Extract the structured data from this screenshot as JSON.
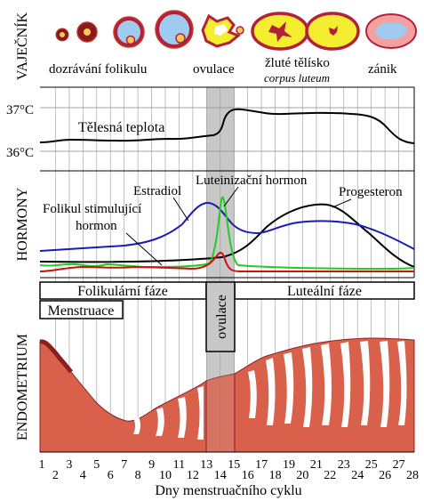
{
  "rows": {
    "ovary": "VAJEČNÍK",
    "hormones": "HORMONY",
    "endometrium": "ENDOMETRIUM"
  },
  "ovary_stages": {
    "maturation": "dozrávání folikulu",
    "ovulation": "ovulace",
    "corpus_luteum": "žluté tělísko",
    "corpus_luteum_latin": "corpus luteum",
    "decline": "zánik"
  },
  "temperature": {
    "label": "Tělesná teplota",
    "tick_high": "37°C",
    "tick_low": "36°C"
  },
  "hormone_labels": {
    "estradiol": "Estradiol",
    "lh": "Luteinizační hormon",
    "fsh_line1": "Folikul stimulující",
    "fsh_line2": "hormon",
    "progesterone": "Progesteron"
  },
  "phases": {
    "follicular": "Folikulární fáze",
    "ovulation": "ovulace",
    "luteal": "Luteální fáze",
    "menstruation": "Menstruace"
  },
  "colors": {
    "fsh": "#22cc22",
    "lh_peak": "#33ee33",
    "estradiol": "#1a1ab8",
    "progesterone": "#000000",
    "lh": "#cc1111",
    "endometrium": "#d9604a",
    "ovulation_band": "#c8c8c8"
  },
  "x_axis": {
    "label": "Dny menstruačního cyklu",
    "days": [
      "1",
      "2",
      "3",
      "4",
      "5",
      "6",
      "7",
      "8",
      "9",
      "10",
      "11",
      "12",
      "13",
      "14",
      "15",
      "16",
      "17",
      "18",
      "19",
      "20",
      "21",
      "22",
      "23",
      "24",
      "25",
      "26",
      "27",
      "28"
    ]
  }
}
